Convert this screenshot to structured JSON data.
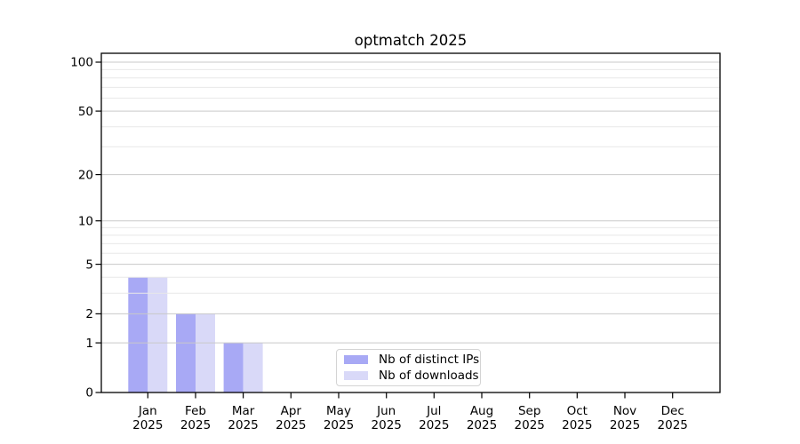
{
  "figure": {
    "background": "#ffffff",
    "frame_color": "#000000",
    "text_color": "#000000"
  },
  "chart_data": {
    "type": "bar",
    "title": "optmatch 2025",
    "x": {
      "months": [
        "Jan",
        "Feb",
        "Mar",
        "Apr",
        "May",
        "Jun",
        "Jul",
        "Aug",
        "Sep",
        "Oct",
        "Nov",
        "Dec"
      ],
      "year": "2025"
    },
    "series": [
      {
        "name": "Nb of distinct IPs",
        "color": "#a8a9f5",
        "values": [
          4,
          2,
          1,
          0,
          0,
          0,
          0,
          0,
          0,
          0,
          0,
          0
        ]
      },
      {
        "name": "Nb of downloads",
        "color": "#d9d9f8",
        "values": [
          4,
          2,
          1,
          0,
          0,
          0,
          0,
          0,
          0,
          0,
          0,
          0
        ]
      }
    ],
    "y_axis": {
      "scale": "log1p",
      "major_ticks": [
        0,
        1,
        2,
        5,
        10,
        20,
        50,
        100
      ],
      "minor_ticks": [
        3,
        4,
        6,
        7,
        8,
        9,
        30,
        40,
        60,
        70,
        80,
        90
      ],
      "range": [
        0,
        115
      ]
    },
    "grid": {
      "major_color": "#c9c9c9",
      "minor_color": "#e8e8e8"
    },
    "legend": {
      "position": "lower center"
    }
  }
}
